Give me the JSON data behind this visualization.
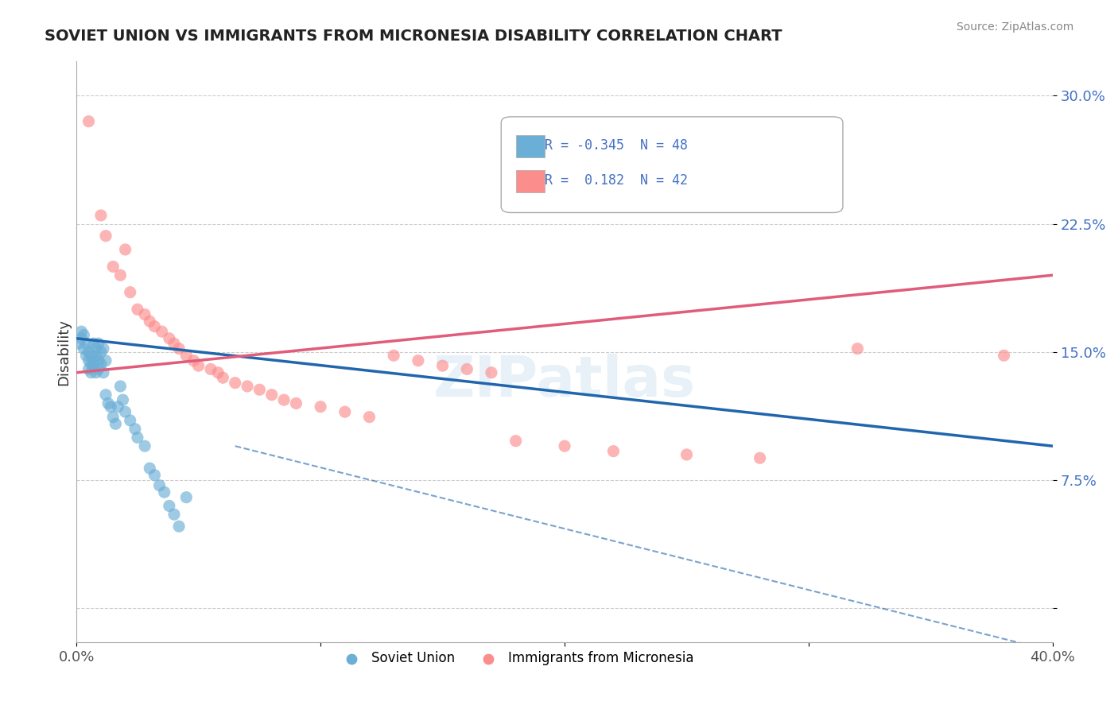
{
  "title": "SOVIET UNION VS IMMIGRANTS FROM MICRONESIA DISABILITY CORRELATION CHART",
  "source": "Source: ZipAtlas.com",
  "ylabel": "Disability",
  "xlim": [
    0.0,
    0.4
  ],
  "ylim": [
    -0.02,
    0.32
  ],
  "yticks": [
    0.0,
    0.075,
    0.15,
    0.225,
    0.3
  ],
  "ytick_labels": [
    "",
    "7.5%",
    "15.0%",
    "22.5%",
    "30.0%"
  ],
  "xticks": [
    0.0,
    0.1,
    0.2,
    0.3,
    0.4
  ],
  "xtick_labels": [
    "0.0%",
    "",
    "",
    "",
    "40.0%"
  ],
  "blue_color": "#6baed6",
  "pink_color": "#fc8d8d",
  "blue_line_color": "#2166ac",
  "pink_line_color": "#e05c7a",
  "blue_scatter": [
    [
      0.001,
      0.155
    ],
    [
      0.002,
      0.162
    ],
    [
      0.002,
      0.158
    ],
    [
      0.003,
      0.16
    ],
    [
      0.003,
      0.152
    ],
    [
      0.004,
      0.148
    ],
    [
      0.004,
      0.155
    ],
    [
      0.005,
      0.15
    ],
    [
      0.005,
      0.145
    ],
    [
      0.005,
      0.14
    ],
    [
      0.006,
      0.148
    ],
    [
      0.006,
      0.143
    ],
    [
      0.006,
      0.138
    ],
    [
      0.007,
      0.155
    ],
    [
      0.007,
      0.145
    ],
    [
      0.007,
      0.142
    ],
    [
      0.008,
      0.152
    ],
    [
      0.008,
      0.148
    ],
    [
      0.008,
      0.138
    ],
    [
      0.009,
      0.155
    ],
    [
      0.009,
      0.145
    ],
    [
      0.009,
      0.14
    ],
    [
      0.01,
      0.15
    ],
    [
      0.01,
      0.143
    ],
    [
      0.011,
      0.138
    ],
    [
      0.011,
      0.152
    ],
    [
      0.012,
      0.145
    ],
    [
      0.012,
      0.125
    ],
    [
      0.013,
      0.12
    ],
    [
      0.014,
      0.118
    ],
    [
      0.015,
      0.112
    ],
    [
      0.016,
      0.108
    ],
    [
      0.017,
      0.118
    ],
    [
      0.018,
      0.13
    ],
    [
      0.019,
      0.122
    ],
    [
      0.02,
      0.115
    ],
    [
      0.022,
      0.11
    ],
    [
      0.024,
      0.105
    ],
    [
      0.025,
      0.1
    ],
    [
      0.028,
      0.095
    ],
    [
      0.03,
      0.082
    ],
    [
      0.032,
      0.078
    ],
    [
      0.034,
      0.072
    ],
    [
      0.036,
      0.068
    ],
    [
      0.038,
      0.06
    ],
    [
      0.04,
      0.055
    ],
    [
      0.042,
      0.048
    ],
    [
      0.045,
      0.065
    ]
  ],
  "pink_scatter": [
    [
      0.005,
      0.285
    ],
    [
      0.01,
      0.23
    ],
    [
      0.012,
      0.218
    ],
    [
      0.015,
      0.2
    ],
    [
      0.018,
      0.195
    ],
    [
      0.02,
      0.21
    ],
    [
      0.022,
      0.185
    ],
    [
      0.025,
      0.175
    ],
    [
      0.028,
      0.172
    ],
    [
      0.03,
      0.168
    ],
    [
      0.032,
      0.165
    ],
    [
      0.035,
      0.162
    ],
    [
      0.038,
      0.158
    ],
    [
      0.04,
      0.155
    ],
    [
      0.042,
      0.152
    ],
    [
      0.045,
      0.148
    ],
    [
      0.048,
      0.145
    ],
    [
      0.05,
      0.142
    ],
    [
      0.055,
      0.14
    ],
    [
      0.058,
      0.138
    ],
    [
      0.06,
      0.135
    ],
    [
      0.065,
      0.132
    ],
    [
      0.07,
      0.13
    ],
    [
      0.075,
      0.128
    ],
    [
      0.08,
      0.125
    ],
    [
      0.085,
      0.122
    ],
    [
      0.09,
      0.12
    ],
    [
      0.1,
      0.118
    ],
    [
      0.11,
      0.115
    ],
    [
      0.12,
      0.112
    ],
    [
      0.13,
      0.148
    ],
    [
      0.14,
      0.145
    ],
    [
      0.15,
      0.142
    ],
    [
      0.16,
      0.14
    ],
    [
      0.17,
      0.138
    ],
    [
      0.18,
      0.098
    ],
    [
      0.2,
      0.095
    ],
    [
      0.22,
      0.092
    ],
    [
      0.25,
      0.09
    ],
    [
      0.28,
      0.088
    ],
    [
      0.32,
      0.152
    ],
    [
      0.38,
      0.148
    ]
  ],
  "blue_line": {
    "x": [
      0.0,
      0.4
    ],
    "y": [
      0.158,
      0.095
    ]
  },
  "blue_dashed_line": {
    "x": [
      0.065,
      0.4
    ],
    "y": [
      0.095,
      -0.025
    ]
  },
  "pink_line": {
    "x": [
      0.0,
      0.4
    ],
    "y": [
      0.138,
      0.195
    ]
  },
  "watermark": "ZIPatlas",
  "background_color": "#ffffff",
  "grid_color": "#cccccc",
  "legend_r1": "-0.345",
  "legend_n1": "48",
  "legend_r2": "0.182",
  "legend_n2": "42",
  "label_blue": "Soviet Union",
  "label_pink": "Immigrants from Micronesia"
}
